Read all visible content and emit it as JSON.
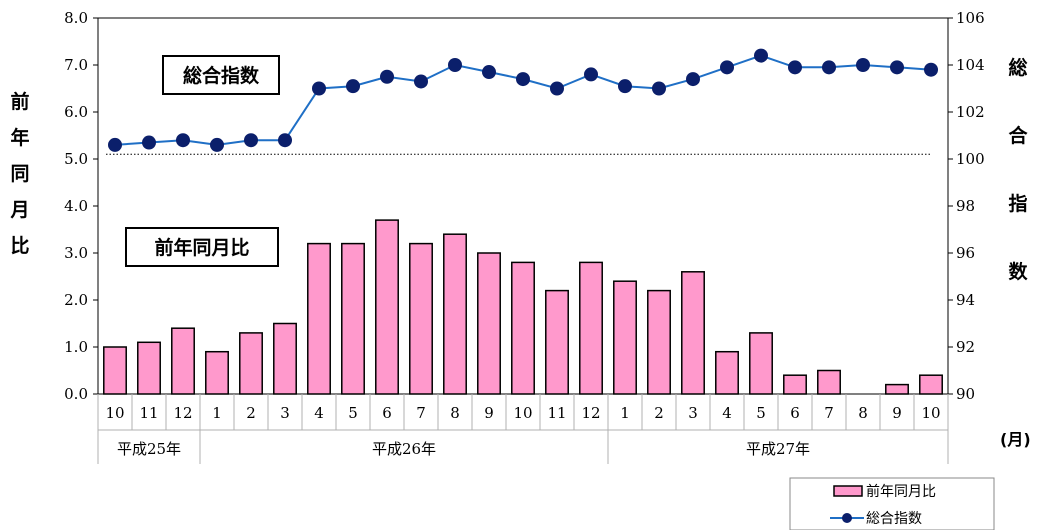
{
  "chart_data": {
    "type": "bar+line",
    "left_axis_label_chars": [
      "前",
      "年",
      "同",
      "月",
      "比"
    ],
    "right_axis_label_chars": [
      "総",
      "合",
      "指",
      "数"
    ],
    "unit_label": "(月)",
    "categories": [
      "10",
      "11",
      "12",
      "1",
      "2",
      "3",
      "4",
      "5",
      "6",
      "7",
      "8",
      "9",
      "10",
      "11",
      "12",
      "1",
      "2",
      "3",
      "4",
      "5",
      "6",
      "7",
      "8",
      "9",
      "10"
    ],
    "year_groups": [
      {
        "label": "平成25年",
        "count": 3
      },
      {
        "label": "平成26年",
        "count": 12
      },
      {
        "label": "平成27年",
        "count": 10
      }
    ],
    "left_axis": {
      "min": 0,
      "max": 8,
      "step": 1,
      "tick_labels": [
        "0.0",
        "1.0",
        "2.0",
        "3.0",
        "4.0",
        "5.0",
        "6.0",
        "7.0",
        "8.0"
      ]
    },
    "right_axis": {
      "min": 90,
      "max": 106,
      "step": 2,
      "tick_labels": [
        "90",
        "92",
        "94",
        "96",
        "98",
        "100",
        "102",
        "104",
        "106"
      ]
    },
    "reference_line_right_value": 100.2,
    "series": [
      {
        "name": "前年同月比",
        "kind": "bar",
        "axis": "left",
        "color": "#ff99cc",
        "values": [
          1.0,
          1.1,
          1.4,
          0.9,
          1.3,
          1.5,
          3.2,
          3.2,
          3.7,
          3.2,
          3.4,
          3.0,
          2.8,
          2.2,
          2.8,
          2.4,
          2.2,
          2.6,
          0.9,
          1.3,
          0.4,
          0.5,
          0.0,
          0.2,
          0.4
        ]
      },
      {
        "name": "総合指数",
        "kind": "line",
        "axis": "right",
        "color": "#1f6fc6",
        "marker_color": "#0b1f6b",
        "values": [
          100.6,
          100.7,
          100.8,
          100.6,
          100.8,
          100.8,
          103.0,
          103.1,
          103.5,
          103.3,
          104.0,
          103.7,
          103.4,
          103.0,
          103.6,
          103.1,
          103.0,
          103.4,
          103.9,
          104.4,
          103.9,
          103.9,
          104.0,
          103.9,
          103.8
        ]
      }
    ],
    "annotation_boxes": [
      "総合指数",
      "前年同月比"
    ],
    "legend": {
      "placement": "bottom-right",
      "entries": [
        "前年同月比",
        "総合指数"
      ]
    }
  }
}
